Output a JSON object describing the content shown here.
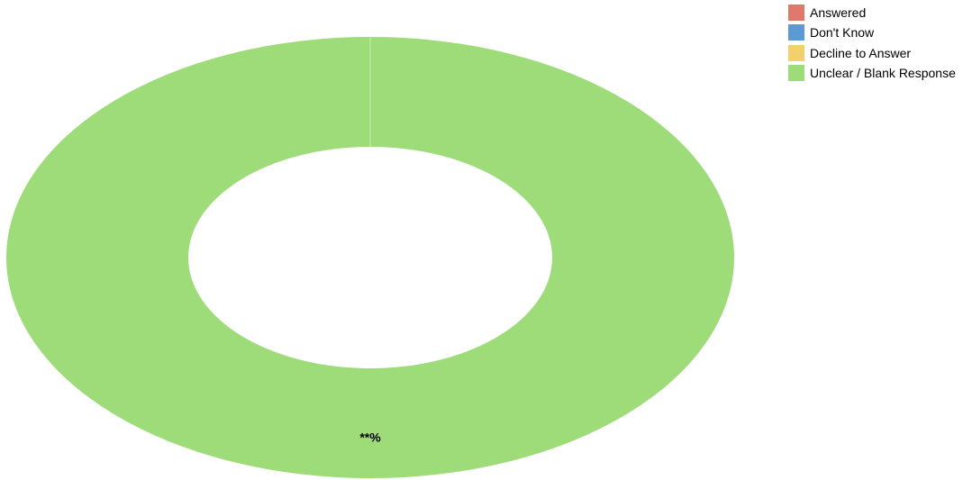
{
  "chart_data": {
    "type": "pie",
    "style": "donut",
    "categories": [
      "Answered",
      "Don't Know",
      "Decline to Answer",
      "Unclear / Blank Response"
    ],
    "values": [
      0,
      0,
      0,
      100
    ],
    "colors": [
      "#e0796b",
      "#5b9ad5",
      "#f2d06b",
      "#9ddc78"
    ],
    "slice_labels": [
      "",
      "",
      "",
      "**%"
    ],
    "legend_position": "top-right"
  },
  "legend": {
    "items": [
      {
        "label": "Answered",
        "color": "#e0796b"
      },
      {
        "label": "Don't Know",
        "color": "#5b9ad5"
      },
      {
        "label": "Decline to Answer",
        "color": "#f2d06b"
      },
      {
        "label": "Unclear / Blank Response",
        "color": "#9ddc78"
      }
    ]
  }
}
